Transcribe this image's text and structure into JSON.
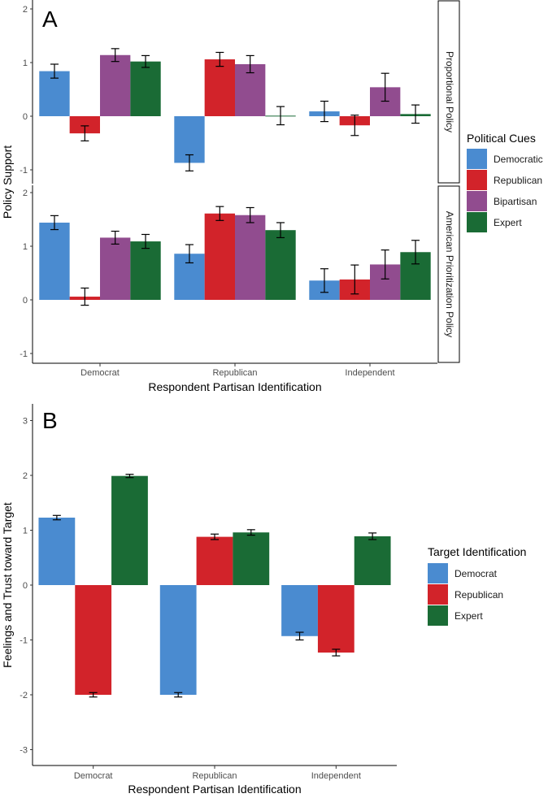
{
  "chart_data": [
    {
      "type": "bar",
      "panel_label": "A",
      "xlabel": "Respondent Partisan Identification",
      "ylabel": "Policy Support",
      "categories": [
        "Democrat",
        "Republican",
        "Independent"
      ],
      "ylim": [
        -1.1,
        2.1
      ],
      "yticks": [
        "-1",
        "0",
        "1",
        "2"
      ],
      "legend": {
        "title": "Political Cues",
        "placement": "right",
        "entries": [
          "Democratic",
          "Republican",
          "Bipartisan",
          "Expert"
        ]
      },
      "colors": [
        "#4A8BD0",
        "#D2232A",
        "#914C8F",
        "#1A6B35"
      ],
      "facets": [
        {
          "label": "Proportional Policy",
          "series": [
            {
              "name": "Democratic",
              "values": [
                0.84,
                -0.87,
                0.09
              ],
              "errors": [
                0.13,
                0.15,
                0.19
              ]
            },
            {
              "name": "Republican",
              "values": [
                -0.32,
                1.06,
                -0.17
              ],
              "errors": [
                0.14,
                0.13,
                0.19
              ]
            },
            {
              "name": "Bipartisan",
              "values": [
                1.14,
                0.97,
                0.54
              ],
              "errors": [
                0.12,
                0.16,
                0.26
              ]
            },
            {
              "name": "Expert",
              "values": [
                1.02,
                0.01,
                0.04
              ],
              "errors": [
                0.11,
                0.17,
                0.17
              ]
            }
          ]
        },
        {
          "label": "American Prioritization Policy",
          "series": [
            {
              "name": "Democratic",
              "values": [
                1.44,
                0.86,
                0.36
              ],
              "errors": [
                0.13,
                0.17,
                0.22
              ]
            },
            {
              "name": "Republican",
              "values": [
                0.06,
                1.61,
                0.38
              ],
              "errors": [
                0.16,
                0.13,
                0.27
              ]
            },
            {
              "name": "Bipartisan",
              "values": [
                1.16,
                1.58,
                0.66
              ],
              "errors": [
                0.12,
                0.14,
                0.27
              ]
            },
            {
              "name": "Expert",
              "values": [
                1.09,
                1.3,
                0.89
              ],
              "errors": [
                0.13,
                0.14,
                0.22
              ]
            }
          ]
        }
      ]
    },
    {
      "type": "bar",
      "panel_label": "B",
      "xlabel": "Respondent Partisan Identification",
      "ylabel": "Feelings and Trust toward Target",
      "categories": [
        "Democrat",
        "Republican",
        "Independent"
      ],
      "ylim": [
        -3.3,
        3.3
      ],
      "yticks": [
        "-3",
        "-2",
        "-1",
        "0",
        "1",
        "2",
        "3"
      ],
      "legend": {
        "title": "Target Identification",
        "placement": "right",
        "entries": [
          "Democrat",
          "Republican",
          "Expert"
        ]
      },
      "colors": [
        "#4A8BD0",
        "#D2232A",
        "#1A6B35"
      ],
      "series": [
        {
          "name": "Democrat",
          "values": [
            1.23,
            -2.0,
            -0.93
          ],
          "errors": [
            0.04,
            0.04,
            0.07
          ]
        },
        {
          "name": "Republican",
          "values": [
            -2.0,
            0.88,
            -1.23
          ],
          "errors": [
            0.04,
            0.05,
            0.06
          ]
        },
        {
          "name": "Expert",
          "values": [
            1.99,
            0.96,
            0.89
          ],
          "errors": [
            0.03,
            0.05,
            0.06
          ]
        }
      ]
    }
  ]
}
